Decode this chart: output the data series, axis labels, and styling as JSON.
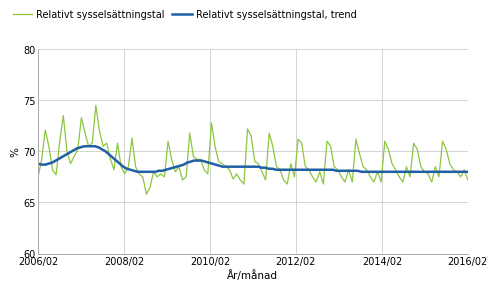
{
  "title": "",
  "ylabel": "%",
  "xlabel": "År/månad",
  "ylim": [
    60,
    80
  ],
  "yticks": [
    60,
    65,
    70,
    75,
    80
  ],
  "xtick_labels": [
    "2006/02",
    "2008/02",
    "2010/02",
    "2012/02",
    "2014/02",
    "2016/02"
  ],
  "line1_label": "Relativt sysselsättningstal",
  "line1_color": "#8dc63f",
  "line2_label": "Relativt sysselsättningstal, trend",
  "line2_color": "#1f5fa6",
  "background_color": "#ffffff",
  "grid_color": "#cccccc",
  "series1": [
    67.5,
    69.2,
    72.1,
    70.5,
    68.2,
    67.7,
    71.0,
    73.5,
    70.0,
    68.8,
    69.5,
    70.2,
    73.3,
    71.8,
    70.5,
    70.8,
    74.5,
    72.0,
    70.5,
    70.8,
    69.3,
    68.2,
    70.8,
    68.5,
    67.8,
    68.5,
    71.3,
    68.5,
    67.8,
    67.5,
    65.8,
    66.5,
    68.0,
    67.5,
    67.8,
    67.5,
    71.0,
    69.2,
    68.0,
    68.5,
    67.2,
    67.5,
    71.8,
    69.5,
    69.2,
    69.2,
    68.2,
    67.8,
    72.8,
    70.5,
    69.0,
    68.8,
    68.5,
    68.2,
    67.3,
    67.8,
    67.2,
    66.8,
    72.2,
    71.5,
    69.0,
    68.8,
    68.0,
    67.2,
    71.8,
    70.5,
    68.5,
    68.2,
    67.2,
    66.8,
    68.8,
    67.5,
    71.2,
    70.8,
    68.5,
    68.2,
    67.5,
    67.0,
    68.0,
    66.8,
    71.0,
    70.5,
    68.5,
    68.2,
    67.5,
    67.0,
    68.2,
    67.0,
    71.2,
    69.8,
    68.5,
    68.2,
    67.5,
    67.0,
    68.0,
    67.0,
    71.0,
    70.2,
    68.8,
    68.2,
    67.5,
    67.0,
    68.5,
    67.5,
    70.8,
    70.2,
    68.5,
    68.0,
    67.8,
    67.0,
    68.5,
    67.5,
    71.0,
    70.2,
    68.8,
    68.2,
    68.0,
    67.5,
    68.2,
    67.2
  ],
  "series2": [
    68.8,
    68.7,
    68.7,
    68.8,
    68.9,
    69.1,
    69.3,
    69.5,
    69.7,
    69.9,
    70.1,
    70.3,
    70.4,
    70.5,
    70.5,
    70.5,
    70.5,
    70.4,
    70.2,
    70.0,
    69.7,
    69.4,
    69.1,
    68.8,
    68.5,
    68.3,
    68.2,
    68.1,
    68.0,
    68.0,
    68.0,
    68.0,
    68.0,
    68.0,
    68.1,
    68.1,
    68.2,
    68.3,
    68.4,
    68.5,
    68.6,
    68.7,
    68.9,
    69.0,
    69.1,
    69.1,
    69.1,
    69.0,
    68.9,
    68.8,
    68.7,
    68.6,
    68.5,
    68.5,
    68.5,
    68.5,
    68.5,
    68.5,
    68.5,
    68.5,
    68.5,
    68.5,
    68.5,
    68.4,
    68.4,
    68.3,
    68.3,
    68.2,
    68.2,
    68.2,
    68.2,
    68.2,
    68.2,
    68.2,
    68.2,
    68.2,
    68.2,
    68.2,
    68.2,
    68.2,
    68.2,
    68.2,
    68.2,
    68.2,
    68.1,
    68.1,
    68.1,
    68.1,
    68.1,
    68.1,
    68.1,
    68.0,
    68.0,
    68.0,
    68.0,
    68.0,
    68.0,
    68.0,
    68.0,
    68.0,
    68.0,
    68.0,
    68.0,
    68.0,
    68.0,
    68.0,
    68.0,
    68.0,
    68.0,
    68.0,
    68.0,
    68.0,
    68.0,
    68.0,
    68.0,
    68.0,
    68.0,
    68.0,
    68.0,
    68.0,
    68.0,
    68.0
  ]
}
